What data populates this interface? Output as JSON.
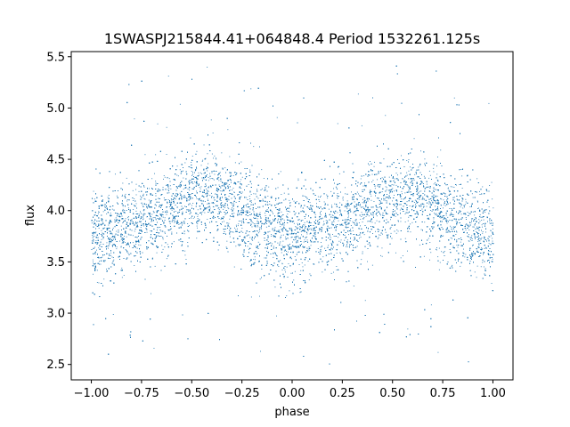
{
  "chart_data": {
    "type": "scatter",
    "title": "1SWASPJ215844.41+064848.4 Period 1532261.125s",
    "xlabel": "phase",
    "ylabel": "flux",
    "xlim": [
      -1.1,
      1.1
    ],
    "ylim": [
      2.35,
      5.55
    ],
    "xticks": [
      -1.0,
      -0.75,
      -0.5,
      -0.25,
      0.0,
      0.25,
      0.5,
      0.75,
      1.0
    ],
    "xtick_labels": [
      "−1.00",
      "−0.75",
      "−0.50",
      "−0.25",
      "0.00",
      "0.25",
      "0.50",
      "0.75",
      "1.00"
    ],
    "yticks": [
      2.5,
      3.0,
      3.5,
      4.0,
      4.5,
      5.0,
      5.5
    ],
    "ytick_labels": [
      "2.5",
      "3.0",
      "3.5",
      "4.0",
      "4.5",
      "5.0",
      "5.5"
    ],
    "grid": false,
    "marker_color": "#1f77b4",
    "series": [
      {
        "phase_range": [
          -1.0,
          1.0
        ],
        "profile_phase": [
          0.0,
          0.1,
          0.2,
          0.3,
          0.4,
          0.5,
          0.6,
          0.7,
          0.8,
          0.9,
          1.0
        ],
        "profile_flux": [
          3.75,
          3.8,
          3.85,
          3.95,
          4.05,
          4.12,
          4.15,
          4.05,
          3.9,
          3.8,
          3.75
        ],
        "typical_scatter": 0.22,
        "point_count": 16000
      }
    ]
  }
}
